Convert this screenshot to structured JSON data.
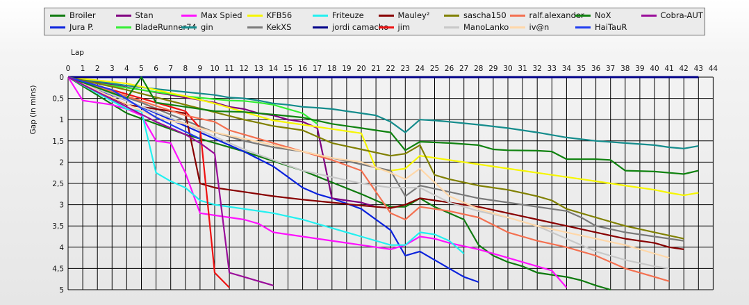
{
  "chart_data": {
    "type": "line",
    "xlabel": "Lap",
    "ylabel": "Gap (in mins)",
    "xlim": [
      0,
      44
    ],
    "ylim": [
      0,
      5
    ],
    "y_inverted": true,
    "grid": true,
    "legend_position": "top",
    "x_ticks": [
      "0",
      "1",
      "2",
      "3",
      "4",
      "5",
      "6",
      "7",
      "8",
      "9",
      "10",
      "11",
      "12",
      "13",
      "14",
      "15",
      "16",
      "17",
      "18",
      "19",
      "20",
      "21",
      "22",
      "23",
      "24",
      "25",
      "26",
      "27",
      "28",
      "29",
      "30",
      "31",
      "32",
      "33",
      "34",
      "35",
      "36",
      "37",
      "38",
      "39",
      "40",
      "41",
      "42",
      "43",
      "44"
    ],
    "y_ticks": [
      "0",
      "0,5",
      "1",
      "1,5",
      "2",
      "2,5",
      "3",
      "3,5",
      "4",
      "4,5",
      "5"
    ],
    "y_tick_values": [
      0,
      0.5,
      1,
      1.5,
      2,
      2.5,
      3,
      3.5,
      4,
      4.5,
      5
    ],
    "series": [
      {
        "name": "Broiler",
        "color": "#0e7a0e",
        "x": [
          0,
          4,
          8,
          12,
          16,
          20,
          22,
          23,
          24,
          25,
          26,
          27,
          28,
          29,
          30,
          31,
          32,
          33,
          34,
          35,
          36,
          37
        ],
        "y": [
          0,
          0.85,
          1.35,
          1.75,
          2.2,
          2.75,
          3.05,
          3.05,
          2.85,
          3.05,
          3.2,
          3.35,
          3.95,
          4.2,
          4.35,
          4.45,
          4.6,
          4.65,
          4.7,
          4.78,
          4.9,
          5.0
        ]
      },
      {
        "name": "Jura P.",
        "color": "#0a22dd",
        "x": [
          0,
          2,
          4,
          6,
          8,
          10,
          12,
          14,
          15,
          16,
          17,
          18,
          20,
          21,
          22,
          23,
          24,
          25,
          26,
          27,
          28
        ],
        "y": [
          0,
          0.3,
          0.55,
          0.85,
          1.15,
          1.45,
          1.75,
          2.1,
          2.35,
          2.6,
          2.75,
          2.85,
          3.1,
          3.35,
          3.6,
          4.2,
          4.1,
          4.3,
          4.5,
          4.7,
          4.82
        ]
      },
      {
        "name": "Stan",
        "color": "#800080",
        "x": [
          0,
          10,
          11,
          12,
          13,
          14,
          15,
          16,
          17,
          18,
          19,
          20,
          21
        ],
        "y": [
          0,
          0.6,
          0.7,
          0.75,
          0.85,
          0.9,
          1.0,
          1.05,
          1.2,
          2.85,
          2.9,
          2.95,
          3.05
        ]
      },
      {
        "name": "BladeRunner74",
        "color": "#33ee33",
        "x": [
          0,
          2,
          4,
          6,
          8,
          10,
          11,
          12,
          13,
          14,
          15,
          16,
          17
        ],
        "y": [
          0,
          0.15,
          0.25,
          0.35,
          0.45,
          0.52,
          0.55,
          0.56,
          0.6,
          0.65,
          0.75,
          0.85,
          1.1
        ]
      },
      {
        "name": "Max Spied",
        "color": "#ff11ff",
        "x": [
          0,
          1,
          2,
          3,
          4,
          5,
          6,
          7,
          8,
          9,
          10,
          12,
          13,
          14,
          16,
          18,
          20,
          22,
          23,
          24,
          25,
          26,
          28,
          30,
          31,
          32,
          33,
          34
        ],
        "y": [
          0,
          0.55,
          0.6,
          0.65,
          0.75,
          0.9,
          1.5,
          1.55,
          2.25,
          3.2,
          3.25,
          3.35,
          3.45,
          3.65,
          3.75,
          3.85,
          3.95,
          4.05,
          3.95,
          3.75,
          3.8,
          3.9,
          4.05,
          4.25,
          4.35,
          4.45,
          4.55,
          4.95
        ]
      },
      {
        "name": "gin",
        "color": "#148c8c",
        "x": [
          0,
          2,
          4,
          6,
          8,
          10,
          11,
          12,
          13,
          14,
          15,
          16,
          17,
          18,
          19,
          20,
          21,
          22,
          23,
          24,
          25,
          26,
          28,
          30,
          32,
          34,
          36,
          38,
          40,
          41,
          42,
          43
        ],
        "y": [
          0,
          0.1,
          0.2,
          0.28,
          0.35,
          0.42,
          0.48,
          0.5,
          0.55,
          0.62,
          0.65,
          0.7,
          0.72,
          0.75,
          0.8,
          0.85,
          0.9,
          1.05,
          1.3,
          1.0,
          1.02,
          1.05,
          1.12,
          1.2,
          1.3,
          1.42,
          1.5,
          1.55,
          1.6,
          1.65,
          1.68,
          1.62
        ]
      },
      {
        "name": "KFB56",
        "color": "#f6f600",
        "x": [
          0,
          4,
          8,
          10,
          12,
          14,
          16,
          18,
          20,
          21,
          22,
          23,
          24,
          26,
          28,
          30,
          32,
          34,
          36,
          38,
          40,
          41,
          42,
          43
        ],
        "y": [
          0,
          0.15,
          0.45,
          0.62,
          0.82,
          1.02,
          1.12,
          1.22,
          1.32,
          2.15,
          2.2,
          2.15,
          1.85,
          1.95,
          2.05,
          2.15,
          2.25,
          2.35,
          2.45,
          2.55,
          2.65,
          2.72,
          2.78,
          2.72
        ]
      },
      {
        "name": "KekXS",
        "color": "#7a7a7a",
        "x": [
          0,
          5,
          10,
          12,
          14,
          16,
          18,
          20,
          22,
          23,
          24,
          26,
          28,
          30,
          32,
          34,
          35,
          36,
          38,
          40,
          42
        ],
        "y": [
          0,
          0.6,
          1.3,
          1.5,
          1.65,
          1.75,
          1.9,
          2.05,
          2.2,
          2.8,
          2.55,
          2.7,
          2.85,
          2.95,
          3.05,
          3.15,
          3.3,
          3.5,
          3.65,
          3.75,
          3.85
        ]
      },
      {
        "name": "Friteuze",
        "color": "#22f0f0",
        "x": [
          0,
          4,
          5,
          6,
          7,
          8,
          9,
          10,
          12,
          14,
          16,
          18,
          20,
          22,
          23,
          24,
          25,
          26,
          27
        ],
        "y": [
          0,
          0.75,
          0.8,
          2.25,
          2.45,
          2.6,
          2.9,
          3.0,
          3.1,
          3.2,
          3.35,
          3.55,
          3.75,
          3.95,
          3.95,
          3.65,
          3.7,
          3.85,
          4.15
        ]
      },
      {
        "name": "jordi camacho",
        "color": "#000088",
        "x": [
          0,
          43
        ],
        "y": [
          0,
          0
        ]
      },
      {
        "name": "Mauley²",
        "color": "#880000",
        "x": [
          0,
          4,
          6,
          8,
          9,
          10,
          11,
          12,
          14,
          16,
          18,
          20,
          22,
          23,
          24,
          26,
          28,
          30,
          32,
          34,
          36,
          38,
          40,
          41,
          42
        ],
        "y": [
          0,
          0.65,
          0.75,
          0.85,
          2.5,
          2.6,
          2.65,
          2.7,
          2.8,
          2.88,
          2.95,
          3.02,
          3.08,
          3.0,
          2.85,
          2.95,
          3.05,
          3.2,
          3.35,
          3.5,
          3.65,
          3.8,
          3.9,
          4.0,
          4.05
        ]
      },
      {
        "name": "jim",
        "color": "#ee1111",
        "x": [
          0,
          6,
          8,
          9,
          10,
          11
        ],
        "y": [
          0,
          0.6,
          0.8,
          1.2,
          4.6,
          4.95
        ]
      },
      {
        "name": "sascha150",
        "color": "#808000",
        "x": [
          0,
          4,
          8,
          12,
          14,
          16,
          18,
          20,
          22,
          23,
          24,
          25,
          26,
          28,
          30,
          32,
          33,
          34,
          36,
          38,
          40,
          42
        ],
        "y": [
          0,
          0.3,
          0.65,
          1.0,
          1.15,
          1.25,
          1.55,
          1.7,
          1.85,
          1.8,
          1.6,
          2.3,
          2.4,
          2.55,
          2.65,
          2.8,
          2.9,
          3.1,
          3.3,
          3.5,
          3.65,
          3.8
        ]
      },
      {
        "name": "ManoLanko",
        "color": "#c8c8c8",
        "x": [
          0,
          4,
          8,
          12,
          16,
          20,
          22,
          24,
          26,
          28,
          30,
          32,
          34,
          36,
          38,
          40,
          41
        ],
        "y": [
          0,
          0.55,
          1.1,
          1.7,
          2.2,
          2.5,
          2.6,
          2.6,
          2.95,
          3.15,
          3.3,
          3.5,
          3.8,
          4.1,
          4.3,
          4.45,
          4.5
        ]
      },
      {
        "name": "ralf.alexander",
        "color": "#f47050",
        "x": [
          0,
          4,
          8,
          10,
          11,
          12,
          14,
          16,
          18,
          20,
          22,
          23,
          24,
          26,
          28,
          30,
          32,
          34,
          36,
          38,
          40,
          41
        ],
        "y": [
          0,
          0.45,
          0.9,
          1.05,
          1.25,
          1.35,
          1.55,
          1.75,
          1.95,
          2.2,
          3.2,
          3.35,
          3.05,
          3.15,
          3.3,
          3.65,
          3.85,
          4.0,
          4.2,
          4.5,
          4.7,
          4.8
        ]
      },
      {
        "name": "iv@n",
        "color": "#ffd7a8",
        "x": [
          0,
          6,
          8,
          10,
          12,
          14,
          16,
          18,
          20,
          22,
          23,
          24,
          26,
          28,
          30,
          32,
          34,
          36,
          38,
          40,
          41
        ],
        "y": [
          0,
          0.95,
          1.1,
          1.3,
          1.45,
          1.6,
          1.75,
          1.9,
          2.0,
          2.25,
          2.4,
          2.15,
          2.8,
          3.1,
          3.3,
          3.5,
          3.65,
          3.8,
          3.95,
          4.15,
          4.25
        ]
      },
      {
        "name": "NoX",
        "color": "#0f820f",
        "x": [
          0,
          4,
          5,
          6,
          8,
          10,
          12,
          14,
          16,
          18,
          20,
          22,
          23,
          24,
          26,
          28,
          29,
          30,
          32,
          33,
          34,
          36,
          37,
          38,
          40,
          41,
          42,
          43
        ],
        "y": [
          0,
          0.5,
          0.0,
          0.6,
          0.7,
          0.8,
          0.82,
          0.88,
          0.95,
          1.1,
          1.2,
          1.3,
          1.72,
          1.52,
          1.55,
          1.6,
          1.7,
          1.72,
          1.73,
          1.75,
          1.93,
          1.93,
          1.95,
          2.2,
          2.22,
          2.25,
          2.28,
          2.2
        ]
      },
      {
        "name": "HaiTauR",
        "color": "#1f3cf0",
        "x": [
          0,
          3,
          6,
          9
        ],
        "y": [
          0,
          0.3,
          0.95,
          1.45
        ]
      },
      {
        "name": "Cobra-AUT",
        "color": "#9a0d9a",
        "x": [
          0,
          2,
          4,
          6,
          8,
          9,
          10,
          11,
          12,
          13,
          14
        ],
        "y": [
          0,
          0.35,
          0.7,
          1.05,
          1.35,
          1.55,
          1.8,
          4.6,
          4.7,
          4.8,
          4.9
        ]
      }
    ]
  }
}
